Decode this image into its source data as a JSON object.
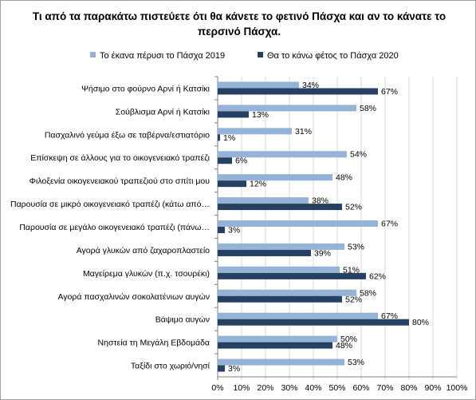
{
  "chart_data": {
    "type": "bar",
    "orientation": "horizontal",
    "title": "Τι από τα παρακάτω πιστεύετε ότι θα κάνετε το φετινό Πάσχα και αν το κάνατε το περσινό Πάσχα.",
    "categories": [
      "Ψήσιμο στο φούρνο Αρνί ή Κατσίκι",
      "Σούβλισμα Αρνί ή Κατσίκι",
      "Πασχαλινό γεύμα έξω σε ταβέρνα/εστιατόριο",
      "Επίσκεψη σε άλλους για το οικογενειακό τραπέζι",
      "Φιλοξενία οικογενειακού τραπεζιού στο σπίτι μου",
      "Παρουσία σε μικρό οικογενειακό τραπέζι (κάτω από…",
      "Παρουσία σε μεγάλο οικογενειακό τραπέζι (πάνω…",
      "Αγορά γλυκών από ζαχαροπλαστείο",
      "Μαγείρεμα γλυκών (π.χ. τσουρέκι)",
      "Αγορά πασχαλινών σοκολατένιων αυγών",
      "Βάψιμο αυγών",
      "Νηστεία τη Μεγάλη Εβδομάδα",
      "Ταξίδι στο χωριό/νησί"
    ],
    "series": [
      {
        "name": "Το έκανα πέρυσι το Πάσχα 2019",
        "color": "#95b3d7",
        "values": [
          34,
          58,
          31,
          54,
          48,
          38,
          67,
          53,
          51,
          58,
          67,
          50,
          53
        ]
      },
      {
        "name": "Θα το κάνω φέτος το Πάσχα 2020",
        "color": "#254061",
        "values": [
          67,
          13,
          1,
          6,
          12,
          52,
          3,
          39,
          62,
          52,
          80,
          48,
          3
        ]
      }
    ],
    "value_suffix": "%",
    "xlim": [
      0,
      100
    ],
    "x_ticks": [
      "0%",
      "10%",
      "20%",
      "30%",
      "40%",
      "50%",
      "60%",
      "70%",
      "80%",
      "90%",
      "100%"
    ],
    "grid": true,
    "legend_position": "top"
  }
}
